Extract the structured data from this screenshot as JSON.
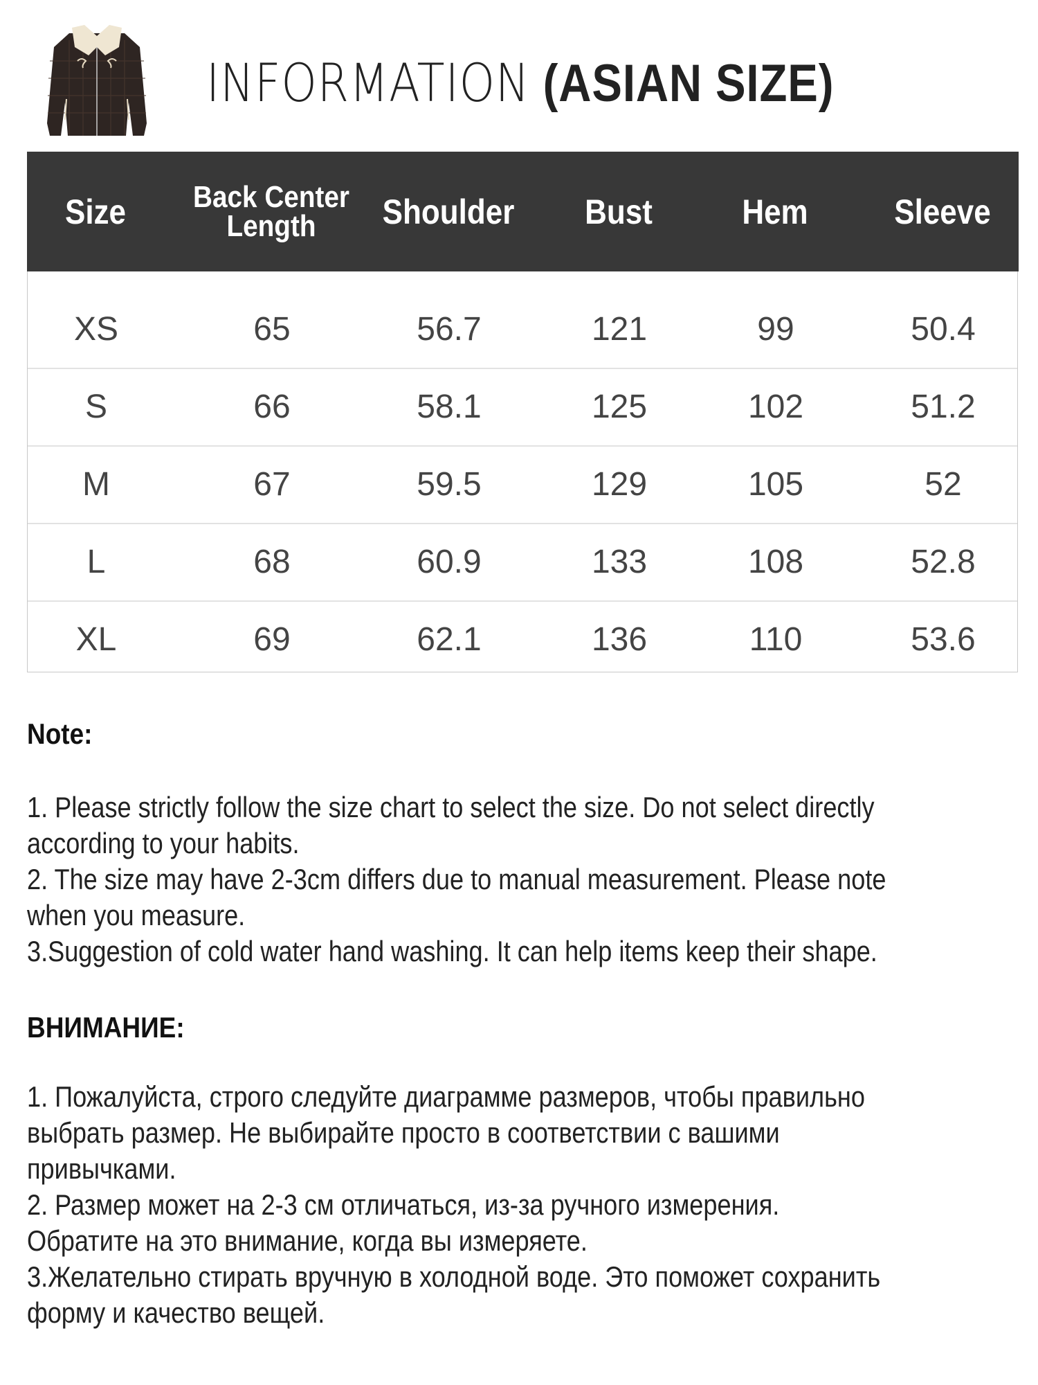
{
  "header": {
    "title_light": "INFORMATION",
    "title_bold": "(ASIAN SIZE)",
    "product_image": "brown plaid zip jacket with cream collar"
  },
  "table": {
    "header_bg": "#383838",
    "columns": [
      "Size",
      "Back Center Length",
      "Shoulder",
      "Bust",
      "Hem",
      "Sleeve"
    ],
    "rows": [
      [
        "XS",
        "65",
        "56.7",
        "121",
        "99",
        "50.4"
      ],
      [
        "S",
        "66",
        "58.1",
        "125",
        "102",
        "51.2"
      ],
      [
        "M",
        "67",
        "59.5",
        "129",
        "105",
        "52"
      ],
      [
        "L",
        "68",
        "60.9",
        "133",
        "108",
        "52.8"
      ],
      [
        "XL",
        "69",
        "62.1",
        "136",
        "110",
        "53.6"
      ]
    ]
  },
  "note_en": {
    "heading": "Note:",
    "lines": [
      "1. Please strictly follow the size chart  to select the size. Do not select directly",
      "according to your habits.",
      "2. The size may have 2-3cm differs due to manual measurement. Please note",
      "when you measure.",
      "3.Suggestion of cold water hand washing. It can help items keep their shape."
    ]
  },
  "note_ru": {
    "heading": "ВНИМАНИЕ:",
    "lines": [
      "1. Пожалуйста, строго следуйте диаграмме размеров, чтобы правильно",
      "выбрать размер. Не выбирайте просто в соответствии с вашими",
      "привычками.",
      "2. Размер может на 2-3 см отличаться, из-за ручного измерения.",
      "Обратите на это внимание, когда вы измеряете.",
      "3.Желательно стирать вручную в холодной воде. Это поможет сохранить",
      "форму и качество вещей."
    ]
  }
}
